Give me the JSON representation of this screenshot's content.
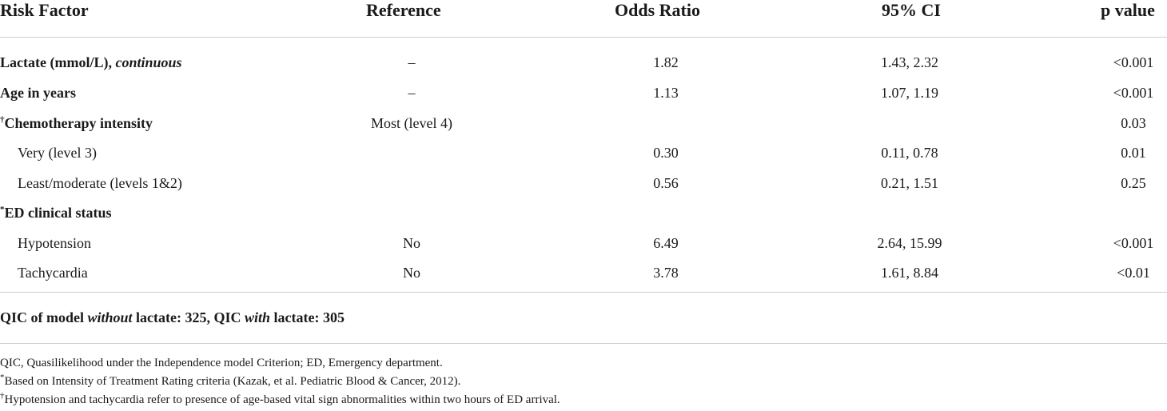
{
  "table": {
    "headers": {
      "risk_factor": "Risk Factor",
      "reference": "Reference",
      "odds_ratio": "Odds Ratio",
      "ci": "95% CI",
      "p_value": "p value"
    },
    "rows": [
      {
        "label": "Lactate (mmol/L), ",
        "label_em": "continuous",
        "sup": "",
        "reference": "–",
        "odds_ratio": "1.82",
        "ci": "1.43, 2.32",
        "p": "<0.001"
      },
      {
        "label": "Age in years",
        "label_em": "",
        "sup": "",
        "reference": "–",
        "odds_ratio": "1.13",
        "ci": "1.07, 1.19",
        "p": "<0.001"
      },
      {
        "label": "Chemotherapy intensity",
        "label_em": "",
        "sup": "†",
        "reference": "Most (level 4)",
        "odds_ratio": "",
        "ci": "",
        "p": "0.03"
      },
      {
        "label": "Very (level 3)",
        "label_em": "",
        "sup": "",
        "reference": "",
        "odds_ratio": "0.30",
        "ci": "0.11, 0.78",
        "p": "0.01"
      },
      {
        "label": "Least/moderate (levels 1&2)",
        "label_em": "",
        "sup": "",
        "reference": "",
        "odds_ratio": "0.56",
        "ci": "0.21, 1.51",
        "p": "0.25"
      },
      {
        "label": "ED clinical status",
        "label_em": "",
        "sup": "*",
        "reference": "",
        "odds_ratio": "",
        "ci": "",
        "p": ""
      },
      {
        "label": "Hypotension",
        "label_em": "",
        "sup": "",
        "reference": "No",
        "odds_ratio": "6.49",
        "ci": "2.64, 15.99",
        "p": "<0.001"
      },
      {
        "label": "Tachycardia",
        "label_em": "",
        "sup": "",
        "reference": "No",
        "odds_ratio": "3.78",
        "ci": "1.61, 8.84",
        "p": "<0.01"
      }
    ],
    "qic": {
      "part1": "QIC of model ",
      "em1": "without",
      "part2": " lactate: 325, QIC ",
      "em2": "with",
      "part3": " lactate: 305"
    }
  },
  "footnotes": [
    {
      "sup": "",
      "text": "QIC, Quasilikelihood under the Independence model Criterion; ED, Emergency department."
    },
    {
      "sup": "*",
      "text": "Based on Intensity of Treatment Rating criteria (Kazak, et al. Pediatric Blood & Cancer, 2012)."
    },
    {
      "sup": "†",
      "text": "Hypotension and tachycardia refer to presence of age-based vital sign abnormalities within two hours of ED arrival."
    }
  ]
}
